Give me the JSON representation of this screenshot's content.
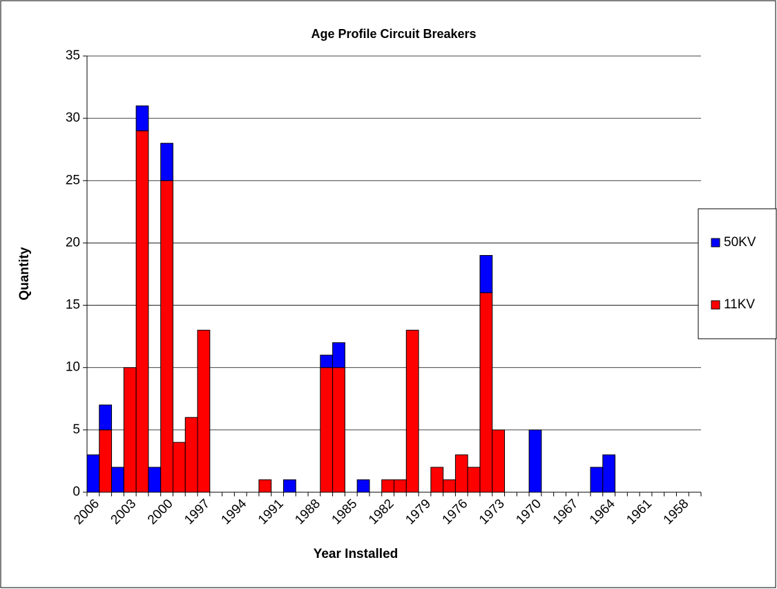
{
  "chart_data": {
    "type": "stacked_bar",
    "title": "Age Profile  Circuit Breakers",
    "x_label": "Year Installed",
    "y_label": "Quantity",
    "categories": [
      "2006",
      null,
      null,
      "2003",
      null,
      null,
      "2000",
      null,
      null,
      "1997",
      null,
      null,
      "1994",
      null,
      null,
      "1991",
      null,
      null,
      "1988",
      null,
      null,
      "1985",
      null,
      null,
      "1982",
      null,
      null,
      "1979",
      null,
      null,
      "1976",
      null,
      null,
      "1973",
      null,
      null,
      "1970",
      null,
      null,
      "1967",
      null,
      null,
      "1964",
      null,
      null,
      "1961",
      null,
      null,
      "1958",
      null
    ],
    "series": [
      {
        "name": "50KV",
        "color": "#0000ff",
        "values": [
          3,
          2,
          2,
          0,
          2,
          2,
          3,
          0,
          0,
          0,
          0,
          0,
          0,
          0,
          0,
          0,
          1,
          0,
          0,
          1,
          2,
          0,
          1,
          0,
          0,
          0,
          0,
          0,
          0,
          0,
          0,
          0,
          3,
          0,
          0,
          0,
          5,
          0,
          0,
          0,
          0,
          2,
          3,
          0,
          0,
          0,
          0,
          0,
          0,
          0
        ]
      },
      {
        "name": "11KV",
        "color": "#ff0000",
        "values": [
          0,
          5,
          0,
          10,
          29,
          0,
          25,
          4,
          6,
          13,
          0,
          0,
          0,
          0,
          1,
          0,
          0,
          0,
          0,
          10,
          10,
          0,
          0,
          0,
          1,
          1,
          13,
          0,
          2,
          1,
          3,
          2,
          16,
          5,
          0,
          0,
          0,
          0,
          0,
          0,
          0,
          0,
          0,
          0,
          0,
          0,
          0,
          0,
          0,
          0
        ]
      }
    ],
    "ylim": [
      0,
      35
    ],
    "yticks": [
      0,
      5,
      10,
      15,
      20,
      25,
      30,
      35
    ],
    "grid": true,
    "legend": "right"
  }
}
